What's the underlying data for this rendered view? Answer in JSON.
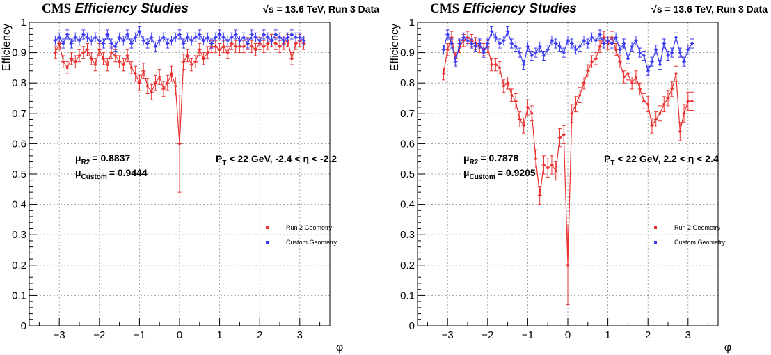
{
  "chart_data": [
    {
      "type": "scatter",
      "header": {
        "experiment": "CMS",
        "title": "Efficiency Studies",
        "energy": "√s = 13.6 TeV, Run 3 Data"
      },
      "xlabel": "φ",
      "ylabel": "Efficiency",
      "xlim": [
        -3.75,
        3.75
      ],
      "ylim": [
        0,
        1
      ],
      "x_ticks": [
        -3,
        -2,
        -1,
        0,
        1,
        2,
        3
      ],
      "x_tick_labels": [
        "−3",
        "−2",
        "−1",
        "0",
        "1",
        "2",
        "3"
      ],
      "y_ticks": [
        0,
        0.1,
        0.2,
        0.3,
        0.4,
        0.5,
        0.6,
        0.7,
        0.8,
        0.9,
        1
      ],
      "y_tick_labels": [
        "0",
        "0.1",
        "0.2",
        "0.3",
        "0.4",
        "0.5",
        "0.6",
        "0.7",
        "0.8",
        "0.9",
        "1"
      ],
      "grid": true,
      "legend_position": "middle-right",
      "stats": [
        {
          "symbol": "μ",
          "subscript": "R2",
          "value": "= 0.8837"
        },
        {
          "symbol": "μ",
          "subscript": "Custom",
          "value": "= 0.9444"
        }
      ],
      "selection": {
        "label": "P",
        "subscript": "T",
        "text": " < 22 GeV, -2.4 < η < -2.2"
      },
      "series": [
        {
          "name": "Run 2 Geometry",
          "color": "#e8312f",
          "x": [
            -3.1,
            -3.0,
            -2.9,
            -2.8,
            -2.7,
            -2.6,
            -2.5,
            -2.4,
            -2.3,
            -2.2,
            -2.1,
            -2.0,
            -1.9,
            -1.8,
            -1.7,
            -1.6,
            -1.5,
            -1.4,
            -1.3,
            -1.2,
            -1.1,
            -1.0,
            -0.9,
            -0.8,
            -0.7,
            -0.6,
            -0.5,
            -0.4,
            -0.3,
            -0.2,
            -0.1,
            0.0,
            0.1,
            0.2,
            0.3,
            0.4,
            0.5,
            0.6,
            0.7,
            0.8,
            0.9,
            1.0,
            1.1,
            1.2,
            1.3,
            1.4,
            1.5,
            1.6,
            1.7,
            1.8,
            1.9,
            2.0,
            2.1,
            2.2,
            2.3,
            2.4,
            2.5,
            2.6,
            2.7,
            2.8,
            2.9,
            3.0,
            3.1
          ],
          "y": [
            0.9,
            0.93,
            0.87,
            0.85,
            0.88,
            0.87,
            0.89,
            0.9,
            0.91,
            0.88,
            0.86,
            0.91,
            0.88,
            0.86,
            0.9,
            0.89,
            0.87,
            0.86,
            0.89,
            0.85,
            0.83,
            0.8,
            0.84,
            0.79,
            0.77,
            0.8,
            0.82,
            0.78,
            0.8,
            0.83,
            0.79,
            0.6,
            0.87,
            0.89,
            0.86,
            0.87,
            0.91,
            0.88,
            0.9,
            0.92,
            0.92,
            0.91,
            0.92,
            0.9,
            0.93,
            0.92,
            0.92,
            0.92,
            0.93,
            0.92,
            0.91,
            0.93,
            0.92,
            0.93,
            0.94,
            0.93,
            0.92,
            0.93,
            0.94,
            0.88,
            0.93,
            0.94,
            0.93
          ],
          "err": [
            0.02,
            0.02,
            0.02,
            0.02,
            0.02,
            0.02,
            0.02,
            0.02,
            0.02,
            0.02,
            0.02,
            0.02,
            0.02,
            0.02,
            0.02,
            0.02,
            0.02,
            0.02,
            0.02,
            0.02,
            0.025,
            0.025,
            0.025,
            0.025,
            0.025,
            0.025,
            0.025,
            0.025,
            0.025,
            0.025,
            0.03,
            0.16,
            0.025,
            0.02,
            0.02,
            0.02,
            0.02,
            0.02,
            0.02,
            0.02,
            0.02,
            0.02,
            0.02,
            0.02,
            0.02,
            0.02,
            0.02,
            0.02,
            0.02,
            0.02,
            0.02,
            0.02,
            0.02,
            0.02,
            0.02,
            0.02,
            0.02,
            0.02,
            0.02,
            0.02,
            0.02,
            0.02,
            0.02
          ]
        },
        {
          "name": "Custom Geometry",
          "color": "#3a3af0",
          "x": [
            -3.1,
            -3.0,
            -2.9,
            -2.8,
            -2.7,
            -2.6,
            -2.5,
            -2.4,
            -2.3,
            -2.2,
            -2.1,
            -2.0,
            -1.9,
            -1.8,
            -1.7,
            -1.6,
            -1.5,
            -1.4,
            -1.3,
            -1.2,
            -1.1,
            -1.0,
            -0.9,
            -0.8,
            -0.7,
            -0.6,
            -0.5,
            -0.4,
            -0.3,
            -0.2,
            -0.1,
            0.0,
            0.1,
            0.2,
            0.3,
            0.4,
            0.5,
            0.6,
            0.7,
            0.8,
            0.9,
            1.0,
            1.1,
            1.2,
            1.3,
            1.4,
            1.5,
            1.6,
            1.7,
            1.8,
            1.9,
            2.0,
            2.1,
            2.2,
            2.3,
            2.4,
            2.5,
            2.6,
            2.7,
            2.8,
            2.9,
            3.0,
            3.1
          ],
          "y": [
            0.94,
            0.95,
            0.93,
            0.96,
            0.93,
            0.95,
            0.94,
            0.96,
            0.95,
            0.94,
            0.95,
            0.94,
            0.93,
            0.96,
            0.93,
            0.92,
            0.95,
            0.94,
            0.96,
            0.93,
            0.95,
            0.97,
            0.94,
            0.93,
            0.95,
            0.92,
            0.94,
            0.95,
            0.93,
            0.94,
            0.95,
            0.96,
            0.93,
            0.95,
            0.94,
            0.95,
            0.96,
            0.94,
            0.95,
            0.93,
            0.95,
            0.96,
            0.95,
            0.94,
            0.95,
            0.96,
            0.94,
            0.95,
            0.93,
            0.96,
            0.95,
            0.94,
            0.96,
            0.95,
            0.94,
            0.96,
            0.95,
            0.94,
            0.95,
            0.96,
            0.95,
            0.95,
            0.94
          ],
          "err": [
            0.015,
            0.015,
            0.015,
            0.015,
            0.015,
            0.015,
            0.015,
            0.015,
            0.015,
            0.015,
            0.015,
            0.015,
            0.015,
            0.015,
            0.015,
            0.015,
            0.015,
            0.015,
            0.015,
            0.015,
            0.015,
            0.015,
            0.015,
            0.015,
            0.015,
            0.015,
            0.015,
            0.015,
            0.015,
            0.015,
            0.015,
            0.015,
            0.015,
            0.015,
            0.015,
            0.015,
            0.015,
            0.015,
            0.015,
            0.015,
            0.015,
            0.015,
            0.015,
            0.015,
            0.015,
            0.015,
            0.015,
            0.015,
            0.015,
            0.015,
            0.015,
            0.015,
            0.015,
            0.015,
            0.015,
            0.015,
            0.015,
            0.015,
            0.015,
            0.015,
            0.015,
            0.015,
            0.015
          ]
        }
      ]
    },
    {
      "type": "scatter",
      "header": {
        "experiment": "CMS",
        "title": "Efficiency Studies",
        "energy": "√s = 13.6 TeV, Run 3 Data"
      },
      "xlabel": "φ",
      "ylabel": "Efficiency",
      "xlim": [
        -3.75,
        3.75
      ],
      "ylim": [
        0,
        1
      ],
      "x_ticks": [
        -3,
        -2,
        -1,
        0,
        1,
        2,
        3
      ],
      "x_tick_labels": [
        "−3",
        "−2",
        "−1",
        "0",
        "1",
        "2",
        "3"
      ],
      "y_ticks": [
        0,
        0.1,
        0.2,
        0.3,
        0.4,
        0.5,
        0.6,
        0.7,
        0.8,
        0.9,
        1
      ],
      "y_tick_labels": [
        "0",
        "0.1",
        "0.2",
        "0.3",
        "0.4",
        "0.5",
        "0.6",
        "0.7",
        "0.8",
        "0.9",
        "1"
      ],
      "grid": true,
      "legend_position": "middle-right",
      "stats": [
        {
          "symbol": "μ",
          "subscript": "R2",
          "value": "= 0.7878"
        },
        {
          "symbol": "μ",
          "subscript": "Custom",
          "value": "= 0.9205"
        }
      ],
      "selection": {
        "label": "P",
        "subscript": "T",
        "text": " < 22 GeV, 2.2 < η < 2.4"
      },
      "series": [
        {
          "name": "Run 2 Geometry",
          "color": "#e8312f",
          "x": [
            -3.1,
            -3.0,
            -2.9,
            -2.8,
            -2.7,
            -2.6,
            -2.5,
            -2.4,
            -2.3,
            -2.2,
            -2.1,
            -2.0,
            -1.9,
            -1.8,
            -1.7,
            -1.6,
            -1.5,
            -1.4,
            -1.3,
            -1.2,
            -1.1,
            -1.0,
            -0.9,
            -0.8,
            -0.7,
            -0.6,
            -0.5,
            -0.4,
            -0.3,
            -0.2,
            -0.1,
            0.0,
            0.1,
            0.2,
            0.3,
            0.4,
            0.5,
            0.6,
            0.7,
            0.8,
            0.9,
            1.0,
            1.1,
            1.2,
            1.3,
            1.4,
            1.5,
            1.6,
            1.7,
            1.8,
            1.9,
            2.0,
            2.1,
            2.2,
            2.3,
            2.4,
            2.5,
            2.6,
            2.7,
            2.8,
            2.9,
            3.0,
            3.1
          ],
          "y": [
            0.83,
            0.91,
            0.95,
            0.88,
            0.92,
            0.94,
            0.95,
            0.94,
            0.93,
            0.92,
            0.91,
            0.92,
            0.86,
            0.86,
            0.85,
            0.79,
            0.8,
            0.76,
            0.74,
            0.68,
            0.66,
            0.72,
            0.7,
            0.55,
            0.43,
            0.53,
            0.52,
            0.53,
            0.51,
            0.62,
            0.63,
            0.2,
            0.7,
            0.73,
            0.76,
            0.8,
            0.84,
            0.87,
            0.88,
            0.92,
            0.95,
            0.93,
            0.95,
            0.91,
            0.87,
            0.82,
            0.83,
            0.8,
            0.82,
            0.78,
            0.74,
            0.73,
            0.66,
            0.68,
            0.7,
            0.73,
            0.75,
            0.78,
            0.83,
            0.64,
            0.7,
            0.74,
            0.74
          ],
          "err": [
            0.02,
            0.02,
            0.02,
            0.02,
            0.02,
            0.02,
            0.02,
            0.02,
            0.02,
            0.02,
            0.02,
            0.02,
            0.02,
            0.02,
            0.02,
            0.02,
            0.02,
            0.02,
            0.025,
            0.025,
            0.025,
            0.025,
            0.025,
            0.03,
            0.03,
            0.03,
            0.03,
            0.03,
            0.03,
            0.03,
            0.03,
            0.13,
            0.03,
            0.025,
            0.025,
            0.02,
            0.02,
            0.02,
            0.02,
            0.02,
            0.02,
            0.02,
            0.02,
            0.02,
            0.02,
            0.02,
            0.02,
            0.02,
            0.02,
            0.02,
            0.025,
            0.025,
            0.025,
            0.025,
            0.025,
            0.025,
            0.025,
            0.025,
            0.025,
            0.03,
            0.03,
            0.03,
            0.03
          ]
        },
        {
          "name": "Custom Geometry",
          "color": "#3a3af0",
          "x": [
            -3.1,
            -3.0,
            -2.9,
            -2.8,
            -2.7,
            -2.6,
            -2.5,
            -2.4,
            -2.3,
            -2.2,
            -2.1,
            -2.0,
            -1.9,
            -1.8,
            -1.7,
            -1.6,
            -1.5,
            -1.4,
            -1.3,
            -1.2,
            -1.1,
            -1.0,
            -0.9,
            -0.8,
            -0.7,
            -0.6,
            -0.5,
            -0.4,
            -0.3,
            -0.2,
            -0.1,
            0.0,
            0.1,
            0.2,
            0.3,
            0.4,
            0.5,
            0.6,
            0.7,
            0.8,
            0.9,
            1.0,
            1.1,
            1.2,
            1.3,
            1.4,
            1.5,
            1.6,
            1.7,
            1.8,
            1.9,
            2.0,
            2.1,
            2.2,
            2.3,
            2.4,
            2.5,
            2.6,
            2.7,
            2.8,
            2.9,
            3.0,
            3.1
          ],
          "y": [
            0.91,
            0.96,
            0.93,
            0.87,
            0.93,
            0.95,
            0.94,
            0.93,
            0.92,
            0.93,
            0.9,
            0.93,
            0.97,
            0.95,
            0.93,
            0.94,
            0.97,
            0.93,
            0.92,
            0.9,
            0.86,
            0.92,
            0.89,
            0.9,
            0.92,
            0.89,
            0.91,
            0.94,
            0.93,
            0.92,
            0.9,
            0.94,
            0.93,
            0.91,
            0.92,
            0.94,
            0.93,
            0.95,
            0.94,
            0.96,
            0.93,
            0.94,
            0.93,
            0.95,
            0.91,
            0.93,
            0.88,
            0.92,
            0.94,
            0.9,
            0.89,
            0.84,
            0.87,
            0.91,
            0.86,
            0.93,
            0.89,
            0.9,
            0.95,
            0.9,
            0.87,
            0.91,
            0.93
          ],
          "err": [
            0.015,
            0.015,
            0.015,
            0.015,
            0.015,
            0.015,
            0.015,
            0.015,
            0.015,
            0.015,
            0.015,
            0.015,
            0.015,
            0.015,
            0.015,
            0.015,
            0.015,
            0.015,
            0.015,
            0.015,
            0.015,
            0.015,
            0.015,
            0.015,
            0.015,
            0.015,
            0.015,
            0.015,
            0.015,
            0.015,
            0.015,
            0.015,
            0.015,
            0.015,
            0.015,
            0.015,
            0.015,
            0.015,
            0.015,
            0.015,
            0.015,
            0.015,
            0.015,
            0.015,
            0.015,
            0.015,
            0.015,
            0.015,
            0.015,
            0.015,
            0.015,
            0.015,
            0.015,
            0.015,
            0.015,
            0.015,
            0.015,
            0.015,
            0.015,
            0.015,
            0.015,
            0.015,
            0.015
          ]
        }
      ]
    }
  ]
}
